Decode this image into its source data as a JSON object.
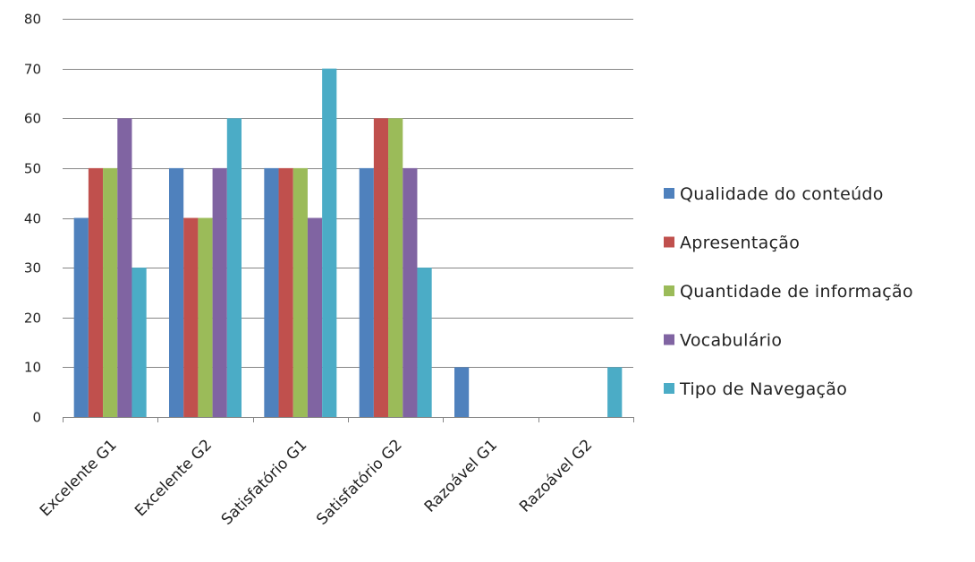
{
  "chart_data": {
    "type": "bar",
    "categories": [
      "Excelente G1",
      "Excelente G2",
      "Satisfatório G1",
      "Satisfatório G2",
      "Razoável G1",
      "Razoável G2"
    ],
    "series": [
      {
        "name": "Qualidade do conteúdo",
        "color": "#4f81bd",
        "values": [
          40,
          50,
          50,
          50,
          10,
          0
        ]
      },
      {
        "name": "Apresentação",
        "color": "#c0504d",
        "values": [
          50,
          40,
          50,
          60,
          0,
          0
        ]
      },
      {
        "name": "Quantidade de informação",
        "color": "#9bbb59",
        "values": [
          50,
          40,
          50,
          60,
          0,
          0
        ]
      },
      {
        "name": "Vocabulário",
        "color": "#8064a2",
        "values": [
          60,
          50,
          40,
          50,
          0,
          0
        ]
      },
      {
        "name": "Tipo de Navegação",
        "color": "#4bacc6",
        "values": [
          30,
          60,
          70,
          30,
          0,
          10
        ]
      }
    ],
    "ylim": [
      0,
      80
    ],
    "yticks": [
      0,
      10,
      20,
      30,
      40,
      50,
      60,
      70,
      80
    ],
    "grid": true,
    "legend": "right",
    "gridline_color": "#868686"
  }
}
